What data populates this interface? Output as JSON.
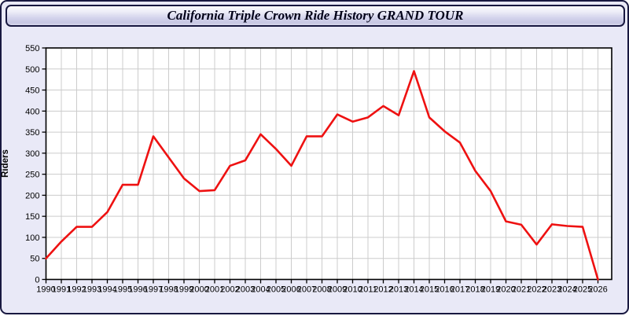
{
  "window": {
    "title": "California Triple Crown Ride History GRAND TOUR"
  },
  "colors": {
    "frame_background": "#e9e9f7",
    "frame_border": "#181840",
    "titlebar_gradient_top": "#fbfbff",
    "titlebar_gradient_bottom": "#c7c7e3",
    "title_text": "#000018",
    "plot_background": "#ffffff",
    "plot_border": "#000000",
    "gridline": "#cccccc",
    "tick_text": "#000000",
    "line": "#ee1111"
  },
  "chart_data": {
    "type": "line",
    "title": "California Triple Crown Ride History GRAND TOUR",
    "xlabel": "",
    "ylabel": "Riders",
    "grid": true,
    "legend_position": "none",
    "ylim": [
      0,
      550
    ],
    "ytick_step": 50,
    "x": [
      1990,
      1991,
      1992,
      1993,
      1994,
      1995,
      1996,
      1997,
      1998,
      1999,
      2000,
      2001,
      2002,
      2003,
      2004,
      2005,
      2006,
      2007,
      2008,
      2009,
      2010,
      2011,
      2012,
      2013,
      2014,
      2015,
      2016,
      2017,
      2018,
      2019,
      2020,
      2021,
      2022,
      2023,
      2024,
      2025,
      2026
    ],
    "series": [
      {
        "name": "Riders",
        "color": "#ee1111",
        "values": [
          50,
          90,
          125,
          125,
          160,
          225,
          225,
          340,
          290,
          240,
          210,
          212,
          270,
          283,
          345,
          310,
          270,
          340,
          340,
          392,
          375,
          385,
          412,
          390,
          495,
          385,
          352,
          325,
          258,
          210,
          138,
          130,
          83,
          131,
          127,
          125,
          0
        ]
      }
    ]
  }
}
